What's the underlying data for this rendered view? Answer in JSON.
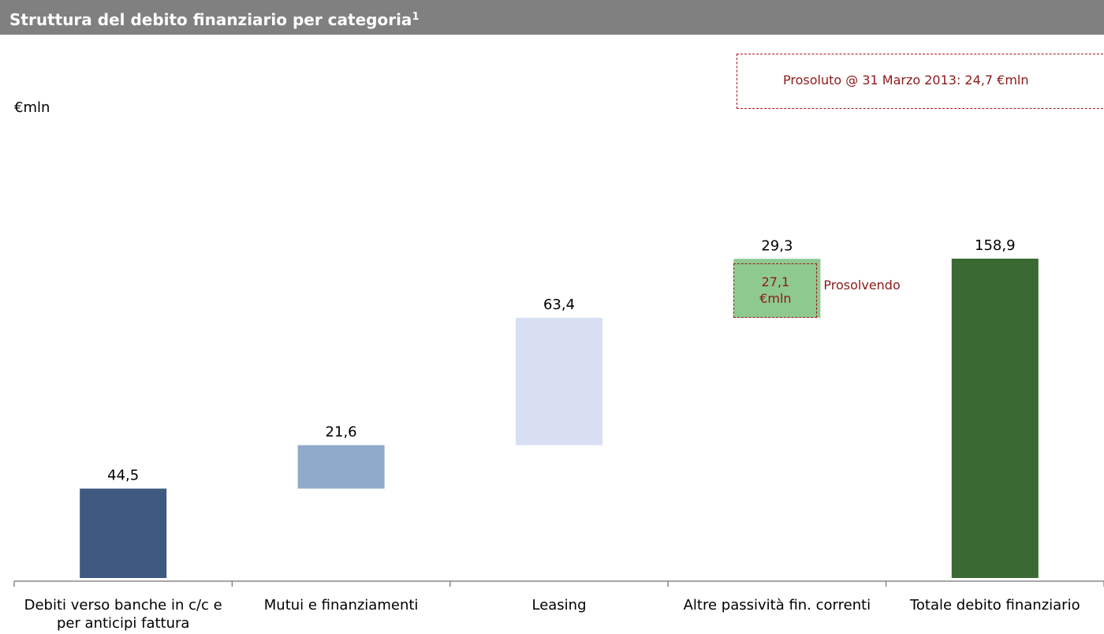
{
  "title": "Struttura del debito finanziario per categoria",
  "title_note": "1",
  "chart_data": {
    "type": "waterfall",
    "unit_label": "€mln",
    "categories": [
      "Debiti verso banche in c/c e per anticipi fattura",
      "Mutui e finanziamenti",
      "Leasing",
      "Altre passività fin. correnti",
      "Totale debito finanziario"
    ],
    "values": [
      44.5,
      21.6,
      63.4,
      29.3,
      158.9
    ],
    "value_labels": [
      "44,5",
      "21,6",
      "63,4",
      "29,3",
      "158,9"
    ],
    "measure": [
      "relative",
      "relative",
      "relative",
      "relative",
      "total"
    ],
    "colors": [
      "#3e5a80",
      "#8faaca",
      "#d9dff3",
      "#8ec98f",
      "#3b6934"
    ],
    "prosolvendo": {
      "name": "Prosolvendo",
      "value": 27.1,
      "label": "27,1 €mln"
    },
    "prosoluto_note": "Prosoluto @ 31 Marzo 2013: 24,7 €mln"
  }
}
